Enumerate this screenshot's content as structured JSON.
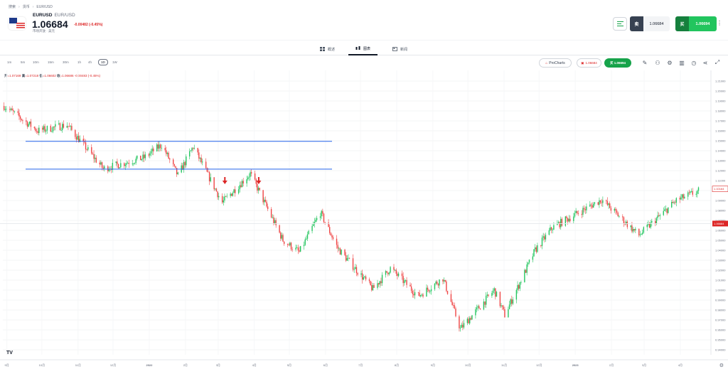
{
  "breadcrumb": [
    "搜索",
    "货币",
    "EUR/USD"
  ],
  "instrument": {
    "symbol": "EURUSD",
    "name": "EUR/USD",
    "price": "1.06684",
    "change": "-0.00482 (-0.45%)",
    "market_status": "市场开放 · 美元",
    "flag_icon": "eu-us-flag-icon"
  },
  "trade": {
    "sell_label": "卖",
    "sell_price": "1.06684",
    "buy_label": "买",
    "buy_price": "1.06694"
  },
  "tabs": [
    {
      "label": "概述",
      "icon": "grid-icon"
    },
    {
      "label": "图表",
      "icon": "candles-icon"
    },
    {
      "label": "新闻",
      "icon": "news-icon"
    }
  ],
  "timeframes": [
    "1m",
    "5m",
    "10m",
    "15m",
    "30m",
    "1h",
    "4h",
    "1D",
    "1W"
  ],
  "active_timeframe": "1D",
  "pro_charts_label": "ProCharts",
  "mini_sell": "1.06684",
  "mini_buy": "买 1.06694",
  "ohlc": {
    "open_label": "开",
    "open": "1.07169",
    "high_label": "高",
    "high": "1.07218",
    "low_label": "低",
    "low": "1.06602",
    "close_label": "收",
    "close": "1.06686",
    "change": "-0.00483 (-0.45%)"
  },
  "colors": {
    "up": "#22c55e",
    "down": "#ef4444",
    "support_lines": "#2563eb",
    "buy": "#22c55e",
    "sell_label_bg": "#374151"
  },
  "chart_data": {
    "type": "candlestick",
    "title": "",
    "y_axis": {
      "ticks": [
        "1.21000",
        "1.20000",
        "1.19000",
        "1.18000",
        "1.17000",
        "1.16000",
        "1.15000",
        "1.14000",
        "1.13000",
        "1.12000",
        "1.11000",
        "1.10000",
        "1.09000",
        "1.08000",
        "1.07000",
        "1.06000",
        "1.05000",
        "1.04000",
        "1.03000",
        "1.02000",
        "1.01000",
        "1.00000",
        "0.99000",
        "0.98000",
        "0.97000",
        "0.96000",
        "0.95000",
        "0.94000"
      ],
      "range": [
        0.935,
        1.215
      ],
      "current_price_label": "1.06684",
      "last_price_label": "1.10164"
    },
    "x_axis": {
      "ticks": [
        "9月",
        "10月",
        "11月",
        "12月",
        "2022",
        "2月",
        "3月",
        "4月",
        "5月",
        "6月",
        "7月",
        "8月",
        "9月",
        "10月",
        "11月",
        "12月",
        "2023",
        "2月",
        "3月",
        "4月"
      ]
    },
    "horizontal_lines": [
      1.1495,
      1.1215
    ],
    "annotations": [
      {
        "type": "down-arrow",
        "at_month": "3月",
        "price": 1.115
      },
      {
        "type": "down-arrow",
        "at_month": "4月",
        "price": 1.115
      }
    ],
    "series_keypoints": [
      {
        "date": "2021-09-01",
        "close": 1.185
      },
      {
        "date": "2021-09-30",
        "close": 1.16
      },
      {
        "date": "2021-10-25",
        "close": 1.166
      },
      {
        "date": "2021-11-25",
        "close": 1.122
      },
      {
        "date": "2021-12-30",
        "close": 1.133
      },
      {
        "date": "2022-01-14",
        "close": 1.146
      },
      {
        "date": "2022-01-28",
        "close": 1.115
      },
      {
        "date": "2022-02-10",
        "close": 1.144
      },
      {
        "date": "2022-03-07",
        "close": 1.088
      },
      {
        "date": "2022-03-31",
        "close": 1.117
      },
      {
        "date": "2022-04-28",
        "close": 1.05
      },
      {
        "date": "2022-05-12",
        "close": 1.038
      },
      {
        "date": "2022-05-30",
        "close": 1.078
      },
      {
        "date": "2022-06-14",
        "close": 1.042
      },
      {
        "date": "2022-07-14",
        "close": 1.001
      },
      {
        "date": "2022-07-29",
        "close": 1.022
      },
      {
        "date": "2022-08-22",
        "close": 0.994
      },
      {
        "date": "2022-09-12",
        "close": 1.012
      },
      {
        "date": "2022-09-27",
        "close": 0.961
      },
      {
        "date": "2022-10-26",
        "close": 1.0
      },
      {
        "date": "2022-11-04",
        "close": 0.975
      },
      {
        "date": "2022-11-30",
        "close": 1.04
      },
      {
        "date": "2022-12-15",
        "close": 1.063
      },
      {
        "date": "2023-01-26",
        "close": 1.091
      },
      {
        "date": "2023-02-27",
        "close": 1.055
      },
      {
        "date": "2023-03-31",
        "close": 1.09
      },
      {
        "date": "2023-04-20",
        "close": 1.1
      }
    ]
  }
}
